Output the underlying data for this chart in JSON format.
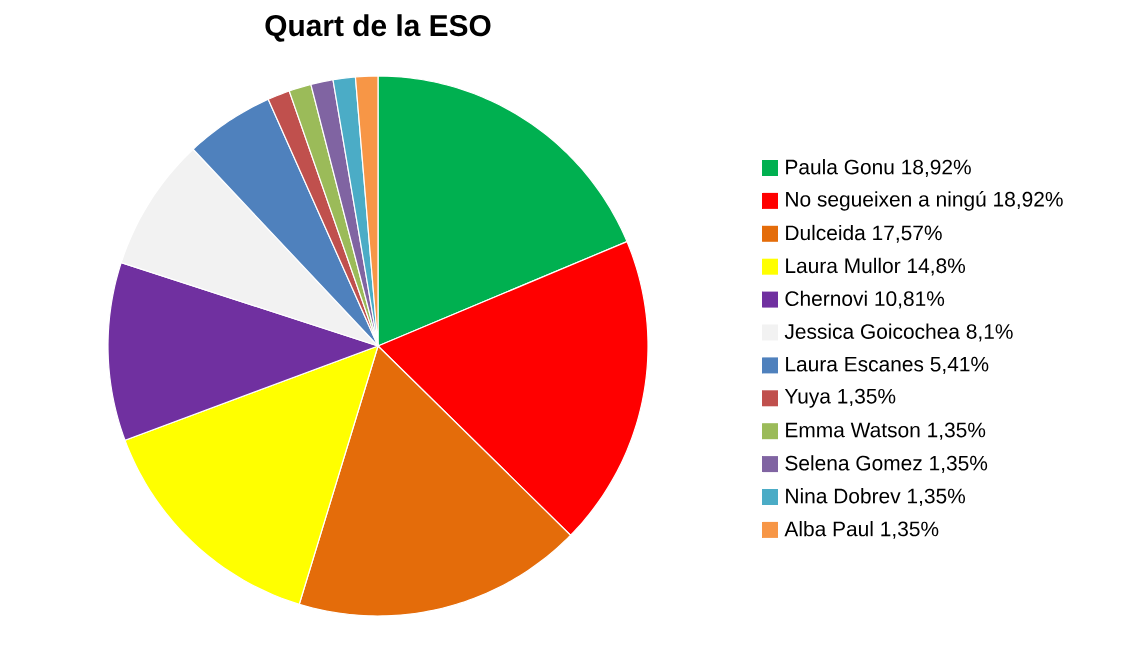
{
  "chart_data": {
    "type": "pie",
    "title": "Quart de la ESO",
    "legend": "right",
    "categories": [
      "Paula Gonu 18,92%",
      "No segueixen a ningú 18,92%",
      "Dulceida 17,57%",
      "Laura Mullor 14,8%",
      "Chernovi 10,81%",
      "Jessica Goicochea 8,1%",
      "Laura Escanes 5,41%",
      "Yuya 1,35%",
      "Emma Watson 1,35%",
      "Selena Gomez 1,35%",
      "Nina Dobrev 1,35%",
      "Alba Paul 1,35%"
    ],
    "values": [
      18.92,
      18.92,
      17.57,
      14.8,
      10.81,
      8.1,
      5.41,
      1.35,
      1.35,
      1.35,
      1.35,
      1.35
    ],
    "colors": [
      "#00b050",
      "#ff0000",
      "#e46c0a",
      "#ffff00",
      "#7030a0",
      "#f2f2f2",
      "#4f81bd",
      "#c0504d",
      "#9bbb59",
      "#8064a2",
      "#4bacc6",
      "#f79646"
    ]
  }
}
